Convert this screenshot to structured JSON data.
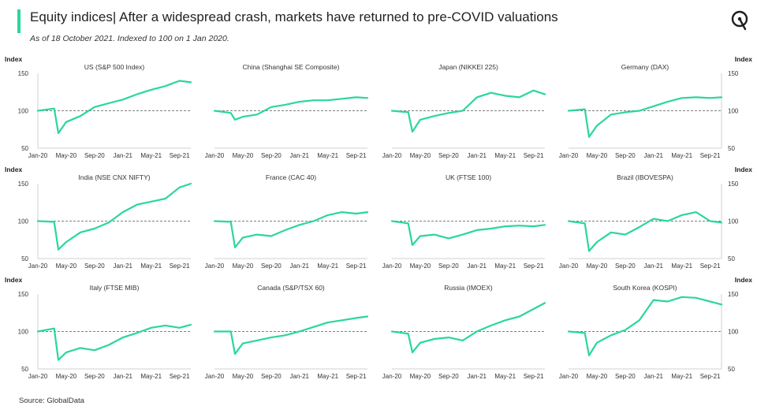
{
  "header": {
    "title_part1": "Equity indices|",
    "title_part2": "After a widespread crash, markets have returned to pre-COVID valuations",
    "subtitle": "As of 18 October 2021. Indexed to 100 on 1 Jan 2020.",
    "logo_icon": "globaldata-logo-icon"
  },
  "footer": {
    "source": "Source: GlobalData"
  },
  "colors": {
    "line": "#2ad6a0",
    "baseline": "#7f7f7f",
    "accent": "#2ad6a0"
  },
  "axis": {
    "y_label": "Index",
    "y_ticks": [
      "150",
      "100",
      "50"
    ],
    "x_ticks": [
      "Jan-20",
      "May-20",
      "Sep-20",
      "Jan-21",
      "May-21",
      "Sep-21"
    ]
  },
  "chart_data": [
    {
      "type": "line",
      "title": "US (S&P 500 Index)",
      "ylim": [
        50,
        150
      ],
      "baseline": 100,
      "x": [
        "Jan-20",
        "Mar-20",
        "Apr-20",
        "May-20",
        "Jul-20",
        "Sep-20",
        "Nov-20",
        "Jan-21",
        "Mar-21",
        "May-21",
        "Jul-21",
        "Sep-21",
        "Oct-21"
      ],
      "values": [
        100,
        103,
        70,
        85,
        93,
        105,
        110,
        115,
        122,
        128,
        133,
        140,
        138
      ]
    },
    {
      "type": "line",
      "title": "China (Shanghai SE Composite)",
      "ylim": [
        50,
        150
      ],
      "baseline": 100,
      "x": [
        "Jan-20",
        "Mar-20",
        "Apr-20",
        "May-20",
        "Jul-20",
        "Sep-20",
        "Nov-20",
        "Jan-21",
        "Mar-21",
        "May-21",
        "Jul-21",
        "Sep-21",
        "Oct-21"
      ],
      "values": [
        100,
        97,
        88,
        92,
        95,
        105,
        108,
        112,
        114,
        114,
        116,
        118,
        117
      ]
    },
    {
      "type": "line",
      "title": "Japan (NIKKEI 225)",
      "ylim": [
        50,
        150
      ],
      "baseline": 100,
      "x": [
        "Jan-20",
        "Mar-20",
        "Apr-20",
        "May-20",
        "Jul-20",
        "Sep-20",
        "Nov-20",
        "Jan-21",
        "Mar-21",
        "May-21",
        "Jul-21",
        "Sep-21",
        "Oct-21"
      ],
      "values": [
        100,
        98,
        72,
        88,
        93,
        97,
        100,
        118,
        124,
        120,
        118,
        127,
        122
      ]
    },
    {
      "type": "line",
      "title": "Germany (DAX)",
      "ylim": [
        50,
        150
      ],
      "baseline": 100,
      "x": [
        "Jan-20",
        "Mar-20",
        "Apr-20",
        "May-20",
        "Jul-20",
        "Sep-20",
        "Nov-20",
        "Jan-21",
        "Mar-21",
        "May-21",
        "Jul-21",
        "Sep-21",
        "Oct-21"
      ],
      "values": [
        100,
        102,
        65,
        80,
        95,
        98,
        100,
        106,
        112,
        117,
        118,
        117,
        118
      ]
    },
    {
      "type": "line",
      "title": "India (NSE CNX NIFTY)",
      "ylim": [
        50,
        150
      ],
      "baseline": 100,
      "x": [
        "Jan-20",
        "Mar-20",
        "Apr-20",
        "May-20",
        "Jul-20",
        "Sep-20",
        "Nov-20",
        "Jan-21",
        "Mar-21",
        "May-21",
        "Jul-21",
        "Sep-21",
        "Oct-21"
      ],
      "values": [
        100,
        99,
        62,
        72,
        85,
        90,
        98,
        112,
        122,
        126,
        130,
        145,
        150
      ]
    },
    {
      "type": "line",
      "title": "France (CAC 40)",
      "ylim": [
        50,
        150
      ],
      "baseline": 100,
      "x": [
        "Jan-20",
        "Mar-20",
        "Apr-20",
        "May-20",
        "Jul-20",
        "Sep-20",
        "Nov-20",
        "Jan-21",
        "Mar-21",
        "May-21",
        "Jul-21",
        "Sep-21",
        "Oct-21"
      ],
      "values": [
        100,
        99,
        65,
        78,
        82,
        80,
        88,
        95,
        100,
        108,
        112,
        110,
        112
      ]
    },
    {
      "type": "line",
      "title": "UK (FTSE 100)",
      "ylim": [
        50,
        150
      ],
      "baseline": 100,
      "x": [
        "Jan-20",
        "Mar-20",
        "Apr-20",
        "May-20",
        "Jul-20",
        "Sep-20",
        "Nov-20",
        "Jan-21",
        "Mar-21",
        "May-21",
        "Jul-21",
        "Sep-21",
        "Oct-21"
      ],
      "values": [
        100,
        97,
        68,
        80,
        82,
        77,
        82,
        88,
        90,
        93,
        94,
        93,
        95
      ]
    },
    {
      "type": "line",
      "title": "Brazil (IBOVESPA)",
      "ylim": [
        50,
        150
      ],
      "baseline": 100,
      "x": [
        "Jan-20",
        "Mar-20",
        "Apr-20",
        "May-20",
        "Jul-20",
        "Sep-20",
        "Nov-20",
        "Jan-21",
        "Mar-21",
        "May-21",
        "Jul-21",
        "Sep-21",
        "Oct-21"
      ],
      "values": [
        100,
        97,
        60,
        72,
        85,
        82,
        92,
        103,
        100,
        108,
        112,
        100,
        98
      ]
    },
    {
      "type": "line",
      "title": "Italy (FTSE MIB)",
      "ylim": [
        50,
        150
      ],
      "baseline": 100,
      "x": [
        "Jan-20",
        "Mar-20",
        "Apr-20",
        "May-20",
        "Jul-20",
        "Sep-20",
        "Nov-20",
        "Jan-21",
        "Mar-21",
        "May-21",
        "Jul-21",
        "Sep-21",
        "Oct-21"
      ],
      "values": [
        100,
        104,
        62,
        72,
        78,
        75,
        82,
        92,
        98,
        105,
        108,
        105,
        109
      ]
    },
    {
      "type": "line",
      "title": "Canada (S&P/TSX 60)",
      "ylim": [
        50,
        150
      ],
      "baseline": 100,
      "x": [
        "Jan-20",
        "Mar-20",
        "Apr-20",
        "May-20",
        "Jul-20",
        "Sep-20",
        "Nov-20",
        "Jan-21",
        "Mar-21",
        "May-21",
        "Jul-21",
        "Sep-21",
        "Oct-21"
      ],
      "values": [
        100,
        100,
        70,
        84,
        88,
        92,
        95,
        100,
        106,
        112,
        115,
        118,
        120
      ]
    },
    {
      "type": "line",
      "title": "Russia (IMOEX)",
      "ylim": [
        50,
        150
      ],
      "baseline": 100,
      "x": [
        "Jan-20",
        "Mar-20",
        "Apr-20",
        "May-20",
        "Jul-20",
        "Sep-20",
        "Nov-20",
        "Jan-21",
        "Mar-21",
        "May-21",
        "Jul-21",
        "Sep-21",
        "Oct-21"
      ],
      "values": [
        100,
        97,
        72,
        85,
        90,
        92,
        88,
        100,
        108,
        115,
        120,
        130,
        138
      ]
    },
    {
      "type": "line",
      "title": "South Korea (KOSPI)",
      "ylim": [
        50,
        150
      ],
      "baseline": 100,
      "x": [
        "Jan-20",
        "Mar-20",
        "Apr-20",
        "May-20",
        "Jul-20",
        "Sep-20",
        "Nov-20",
        "Jan-21",
        "Mar-21",
        "May-21",
        "Jul-21",
        "Sep-21",
        "Oct-21"
      ],
      "values": [
        100,
        98,
        68,
        85,
        95,
        102,
        115,
        142,
        140,
        146,
        145,
        140,
        136
      ]
    }
  ]
}
